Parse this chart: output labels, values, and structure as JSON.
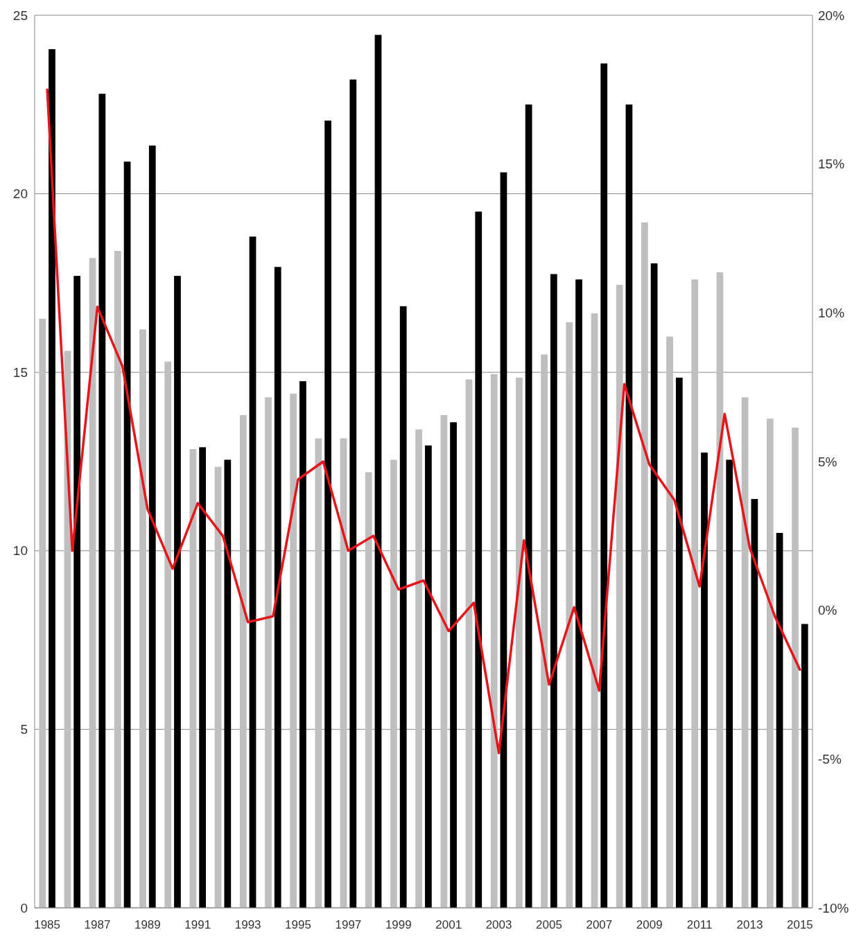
{
  "chart_data": {
    "type": "bar",
    "categories": [
      "1985",
      null,
      "1987",
      null,
      "1989",
      null,
      "1991",
      null,
      "1993",
      null,
      "1995",
      null,
      "1997",
      null,
      "1999",
      null,
      "2001",
      null,
      "2003",
      null,
      "2005",
      null,
      "2007",
      null,
      "2009",
      null,
      "2011",
      null,
      "2013",
      null,
      "2015"
    ],
    "series": [
      {
        "color": "#bfbfbf",
        "values": [
          16.5,
          15.6,
          18.2,
          18.4,
          16.2,
          15.3,
          12.85,
          12.35,
          13.8,
          14.3,
          14.4,
          13.15,
          13.15,
          12.2,
          12.55,
          13.4,
          13.8,
          14.8,
          14.95,
          14.85,
          15.5,
          16.4,
          16.65,
          17.45,
          19.2,
          16.0,
          17.6,
          17.8,
          14.3,
          13.7,
          13.45
        ]
      },
      {
        "color": "#000000",
        "values": [
          24.05,
          17.7,
          22.8,
          20.9,
          21.35,
          17.7,
          12.9,
          12.55,
          18.8,
          17.95,
          14.75,
          22.05,
          23.2,
          24.45,
          16.85,
          12.95,
          13.6,
          19.5,
          20.6,
          22.5,
          17.75,
          17.6,
          23.65,
          22.5,
          18.05,
          14.85,
          12.75,
          12.55,
          11.45,
          10.5,
          7.95
        ]
      },
      {
        "type": "line",
        "axis": "y2",
        "color": "#e8141a",
        "values": [
          17.5,
          2.0,
          10.2,
          8.2,
          3.4,
          1.4,
          3.6,
          2.5,
          -0.4,
          -0.2,
          4.4,
          5.0,
          2.0,
          2.5,
          0.7,
          1.0,
          -0.7,
          0.25,
          -4.8,
          2.35,
          -2.5,
          0.1,
          -2.7,
          7.6,
          4.9,
          3.7,
          0.8,
          6.6,
          2.1,
          -0.2,
          -2.0
        ]
      }
    ],
    "ylim": [
      0,
      25
    ],
    "yticks": [
      0,
      5,
      10,
      15,
      20,
      25
    ],
    "y2lim": [
      -10,
      20
    ],
    "y2ticks": [
      {
        "value": -10,
        "label": "-10%"
      },
      {
        "value": -5,
        "label": "-5%"
      },
      {
        "value": 0,
        "label": "0%"
      },
      {
        "value": 5,
        "label": "5%"
      },
      {
        "value": 10,
        "label": "10%"
      },
      {
        "value": 15,
        "label": "15%"
      },
      {
        "value": 20,
        "label": "20%"
      }
    ],
    "grid": "y",
    "marker": "none",
    "line_style": "solid"
  }
}
